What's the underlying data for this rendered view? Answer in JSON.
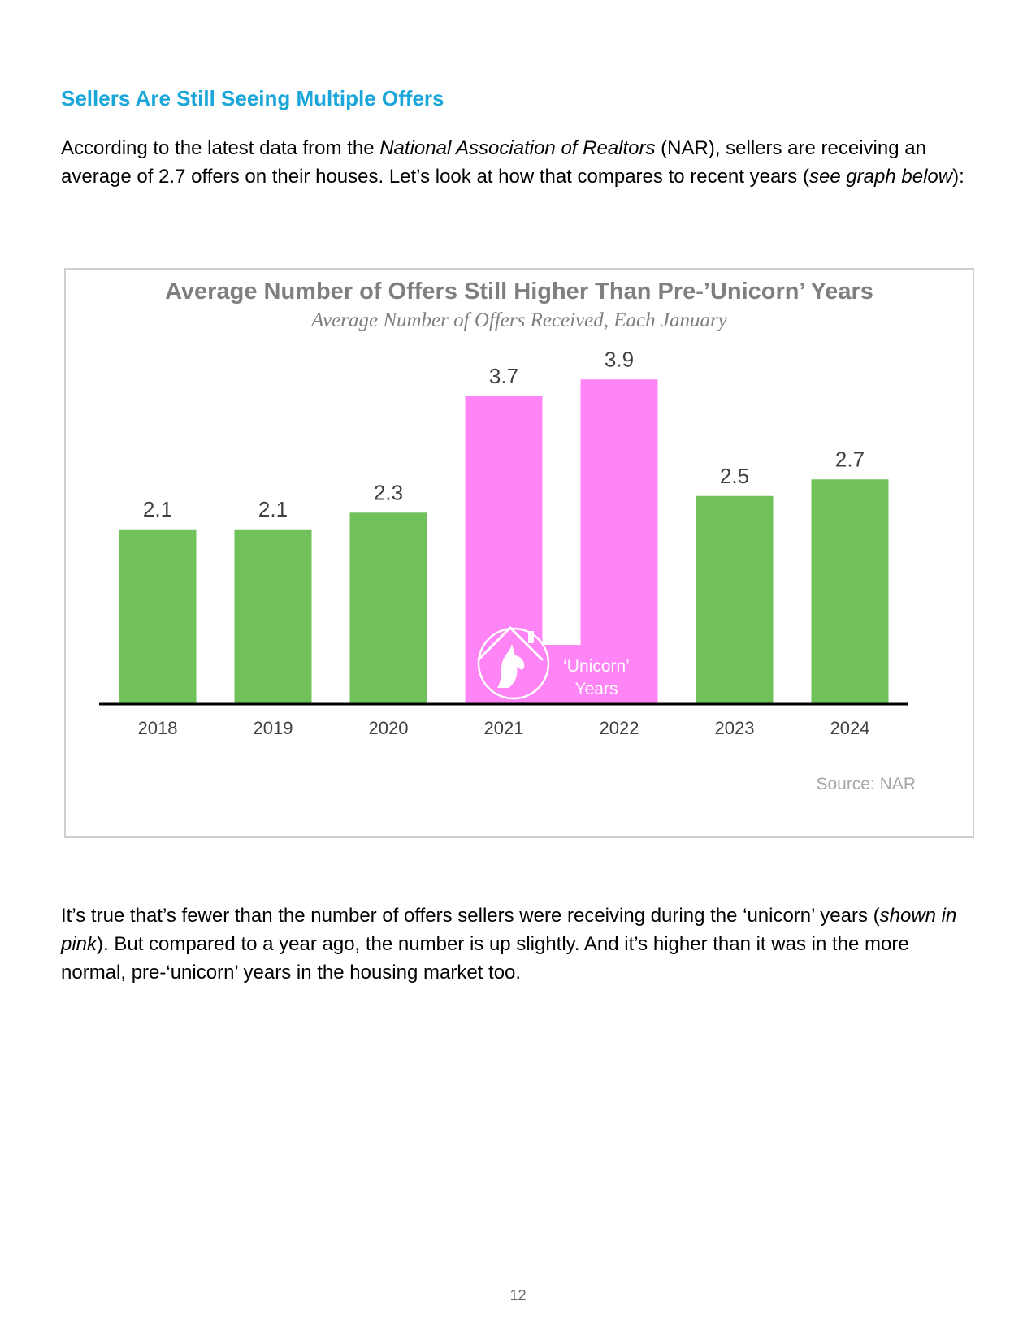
{
  "heading": "Sellers Are Still Seeing Multiple Offers",
  "intro": {
    "t1": "According to the latest data from the ",
    "i1": "National Association of Realtors",
    "t2": " (NAR), sellers are receiving an average of 2.7 offers on their houses. Let’s look at how that compares to recent years (",
    "i2": "see graph below",
    "t3": "):"
  },
  "chart_data": {
    "type": "bar",
    "title": "Average Number of Offers Still Higher Than Pre-’Unicorn’ Years",
    "subtitle": "Average Number of Offers Received, Each January",
    "categories": [
      "2018",
      "2019",
      "2020",
      "2021",
      "2022",
      "2023",
      "2024"
    ],
    "values": [
      2.1,
      2.1,
      2.3,
      3.7,
      3.9,
      2.5,
      2.7
    ],
    "data_labels": [
      "2.1",
      "2.1",
      "2.3",
      "3.7",
      "3.9",
      "2.5",
      "2.7"
    ],
    "highlight": [
      false,
      false,
      false,
      true,
      true,
      false,
      false
    ],
    "colors": {
      "normal": "#70c15a",
      "unicorn": "#ff85f7",
      "axis": "#000000",
      "text": "#404040",
      "title": "#7f7f7f"
    },
    "unicorn_label_line1": "‘Unicorn’",
    "unicorn_label_line2": "Years",
    "unicorn_icon": "unicorn-house-icon",
    "source": "Source: NAR",
    "ylim": [
      0,
      4.4
    ],
    "grid": false,
    "legend": "none"
  },
  "outro": {
    "t1": "It’s true that’s fewer than the number of offers sellers were receiving during the ‘unicorn’ years (",
    "i1": "shown in pink",
    "t2": "). But compared to a year ago, the number is up slightly. And it’s higher than it was in the more normal, pre-‘unicorn’ years in the housing market too."
  },
  "page_number": "12"
}
